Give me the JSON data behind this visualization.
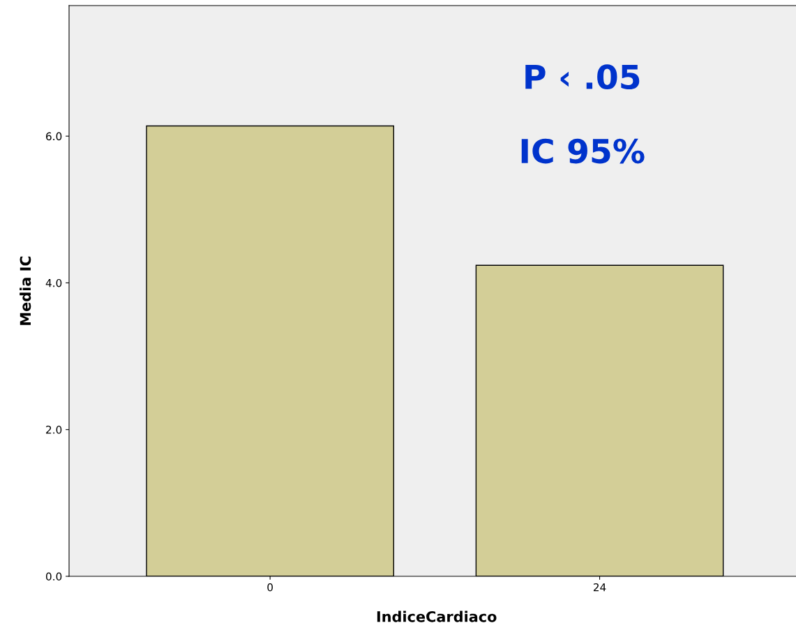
{
  "chart_data": {
    "type": "bar",
    "xlabel": "IndiceCardiaco",
    "ylabel": "Media IC",
    "categories": [
      "0",
      "24"
    ],
    "values": [
      6.14,
      4.24
    ],
    "color": "#d3ce97",
    "ylim": [
      0,
      7.78
    ],
    "yticks": [
      {
        "value": 0,
        "label": "0.0"
      },
      {
        "value": 2,
        "label": "2.0"
      },
      {
        "value": 4,
        "label": "4.0"
      },
      {
        "value": 6,
        "label": "6.0"
      }
    ],
    "annotations": [
      "P ‹ .05",
      "IC 95%"
    ],
    "grid": false,
    "legend": false
  }
}
